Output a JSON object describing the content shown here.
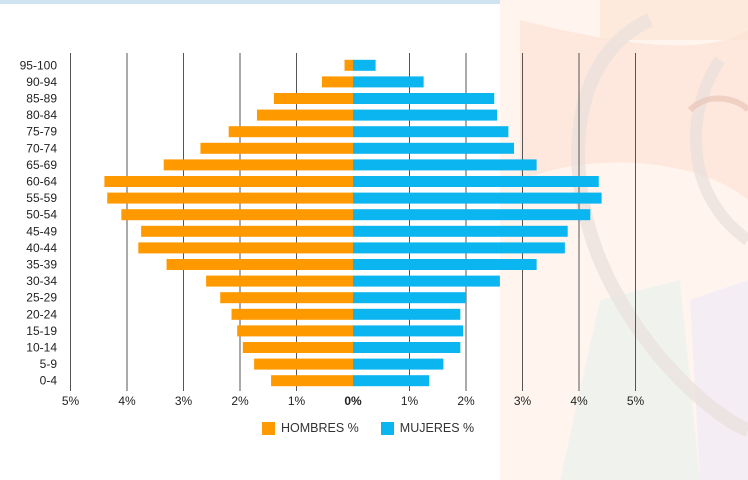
{
  "chart_data": {
    "type": "bar",
    "orientation": "horizontal-population-pyramid",
    "categories": [
      "0-4",
      "5-9",
      "10-14",
      "15-19",
      "20-24",
      "25-29",
      "30-34",
      "35-39",
      "40-44",
      "45-49",
      "50-54",
      "55-59",
      "60-64",
      "65-69",
      "70-74",
      "75-79",
      "80-84",
      "85-89",
      "90-94",
      "95-100"
    ],
    "series": [
      {
        "name": "HOMBRES %",
        "color": "#ff9900",
        "values": [
          1.45,
          1.75,
          1.95,
          2.05,
          2.15,
          2.35,
          2.6,
          3.3,
          3.8,
          3.75,
          4.1,
          4.35,
          4.4,
          3.35,
          2.7,
          2.2,
          1.7,
          1.4,
          0.55,
          0.15
        ]
      },
      {
        "name": "MUJERES %",
        "color": "#0bb5f0",
        "values": [
          1.35,
          1.6,
          1.9,
          1.95,
          1.9,
          2.0,
          2.6,
          3.25,
          3.75,
          3.8,
          4.2,
          4.4,
          4.35,
          3.25,
          2.85,
          2.75,
          2.55,
          2.5,
          1.25,
          0.4
        ]
      }
    ],
    "xlim": [
      -5,
      5
    ],
    "x_ticks": [
      "5%",
      "4%",
      "3%",
      "2%",
      "1%",
      "0%",
      "1%",
      "2%",
      "3%",
      "4%",
      "5%"
    ],
    "grid": "vertical",
    "legend": "bottom-center"
  },
  "legend": {
    "men_label": "HOMBRES %",
    "women_label": "MUJERES %"
  }
}
